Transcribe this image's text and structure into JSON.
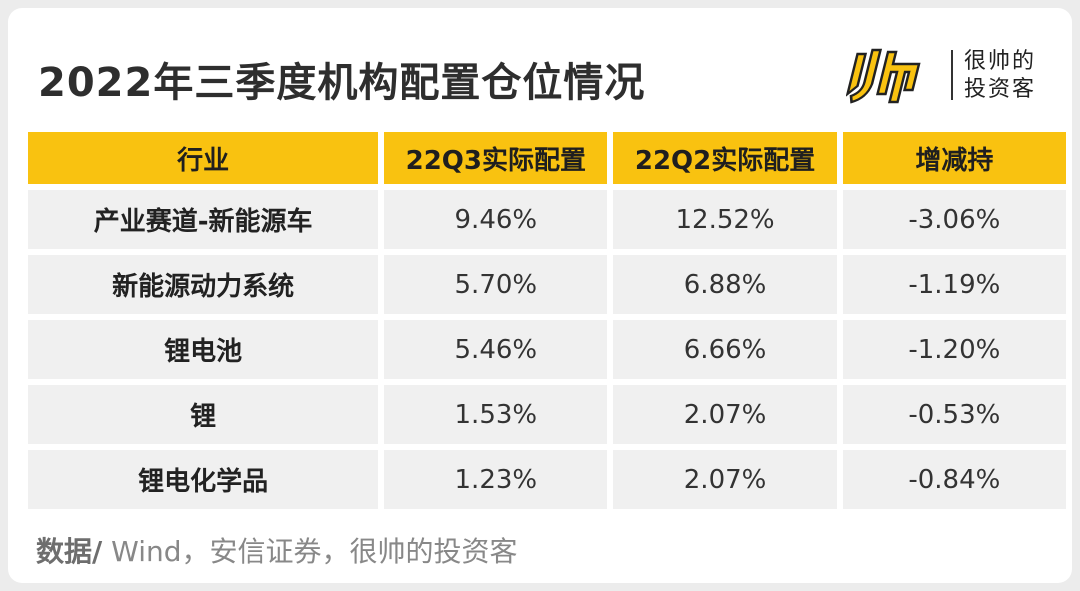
{
  "title": "2022年三季度机构配置仓位情况",
  "brand": {
    "logo_icon": "shuai-logo-icon",
    "line1": "很帅的",
    "line2": "投资客",
    "accent_color": "#f9c210"
  },
  "chart_data": {
    "type": "table",
    "columns": [
      "行业",
      "22Q3实际配置",
      "22Q2实际配置",
      "增减持"
    ],
    "rows": [
      [
        "产业赛道-新能源车",
        "9.46%",
        "12.52%",
        "-3.06%"
      ],
      [
        "新能源动力系统",
        "5.70%",
        "6.88%",
        "-1.19%"
      ],
      [
        "锂电池",
        "5.46%",
        "6.66%",
        "-1.20%"
      ],
      [
        "锂",
        "1.53%",
        "2.07%",
        "-0.53%"
      ],
      [
        "锂电化学品",
        "1.23%",
        "2.07%",
        "-0.84%"
      ]
    ],
    "title": "2022年三季度机构配置仓位情况"
  },
  "source": {
    "prefix": "数据/",
    "text": " Wind，安信证券，很帅的投资客"
  }
}
